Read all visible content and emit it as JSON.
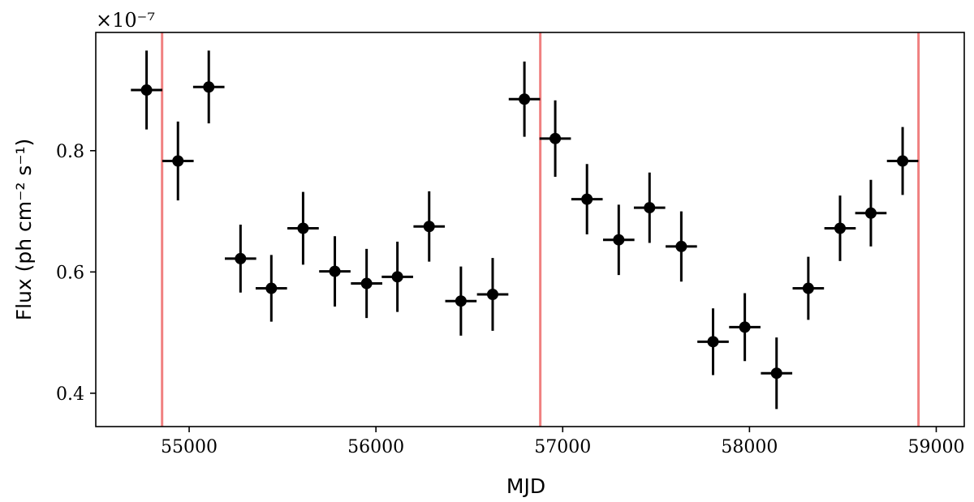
{
  "chart_data": {
    "type": "scatter",
    "xlabel": "MJD",
    "ylabel": "Flux (ph cm⁻² s⁻¹)",
    "y_offset_label": "×10⁻⁷",
    "xlim": [
      54500,
      59150
    ],
    "ylim": [
      0.345,
      0.995
    ],
    "xticks": [
      55000,
      56000,
      57000,
      58000,
      59000
    ],
    "yticks": [
      0.4,
      0.6,
      0.8
    ],
    "xtick_labels": [
      "55000",
      "56000",
      "57000",
      "58000",
      "59000"
    ],
    "ytick_labels": [
      "0.4",
      "0.6",
      "0.8"
    ],
    "grid": false,
    "marker_color": "#000000",
    "vline_color": "#f08080",
    "vlines": [
      54855,
      56880,
      58905
    ],
    "x_halfwidth": 84,
    "points": [
      {
        "x": 54772,
        "y": 0.9,
        "yerr": 0.065
      },
      {
        "x": 54940,
        "y": 0.783,
        "yerr": 0.065
      },
      {
        "x": 55105,
        "y": 0.905,
        "yerr": 0.06
      },
      {
        "x": 55275,
        "y": 0.622,
        "yerr": 0.056
      },
      {
        "x": 55440,
        "y": 0.573,
        "yerr": 0.055
      },
      {
        "x": 55610,
        "y": 0.672,
        "yerr": 0.06
      },
      {
        "x": 55780,
        "y": 0.601,
        "yerr": 0.058
      },
      {
        "x": 55950,
        "y": 0.581,
        "yerr": 0.057
      },
      {
        "x": 56115,
        "y": 0.592,
        "yerr": 0.058
      },
      {
        "x": 56285,
        "y": 0.675,
        "yerr": 0.058
      },
      {
        "x": 56455,
        "y": 0.552,
        "yerr": 0.057
      },
      {
        "x": 56625,
        "y": 0.563,
        "yerr": 0.06
      },
      {
        "x": 56795,
        "y": 0.885,
        "yerr": 0.062
      },
      {
        "x": 56960,
        "y": 0.82,
        "yerr": 0.063
      },
      {
        "x": 57130,
        "y": 0.72,
        "yerr": 0.058
      },
      {
        "x": 57300,
        "y": 0.653,
        "yerr": 0.058
      },
      {
        "x": 57465,
        "y": 0.706,
        "yerr": 0.058
      },
      {
        "x": 57635,
        "y": 0.642,
        "yerr": 0.058
      },
      {
        "x": 57805,
        "y": 0.485,
        "yerr": 0.055
      },
      {
        "x": 57975,
        "y": 0.509,
        "yerr": 0.056
      },
      {
        "x": 58145,
        "y": 0.433,
        "yerr": 0.059
      },
      {
        "x": 58315,
        "y": 0.573,
        "yerr": 0.052
      },
      {
        "x": 58485,
        "y": 0.672,
        "yerr": 0.054
      },
      {
        "x": 58650,
        "y": 0.697,
        "yerr": 0.055
      },
      {
        "x": 58820,
        "y": 0.783,
        "yerr": 0.056
      }
    ]
  }
}
